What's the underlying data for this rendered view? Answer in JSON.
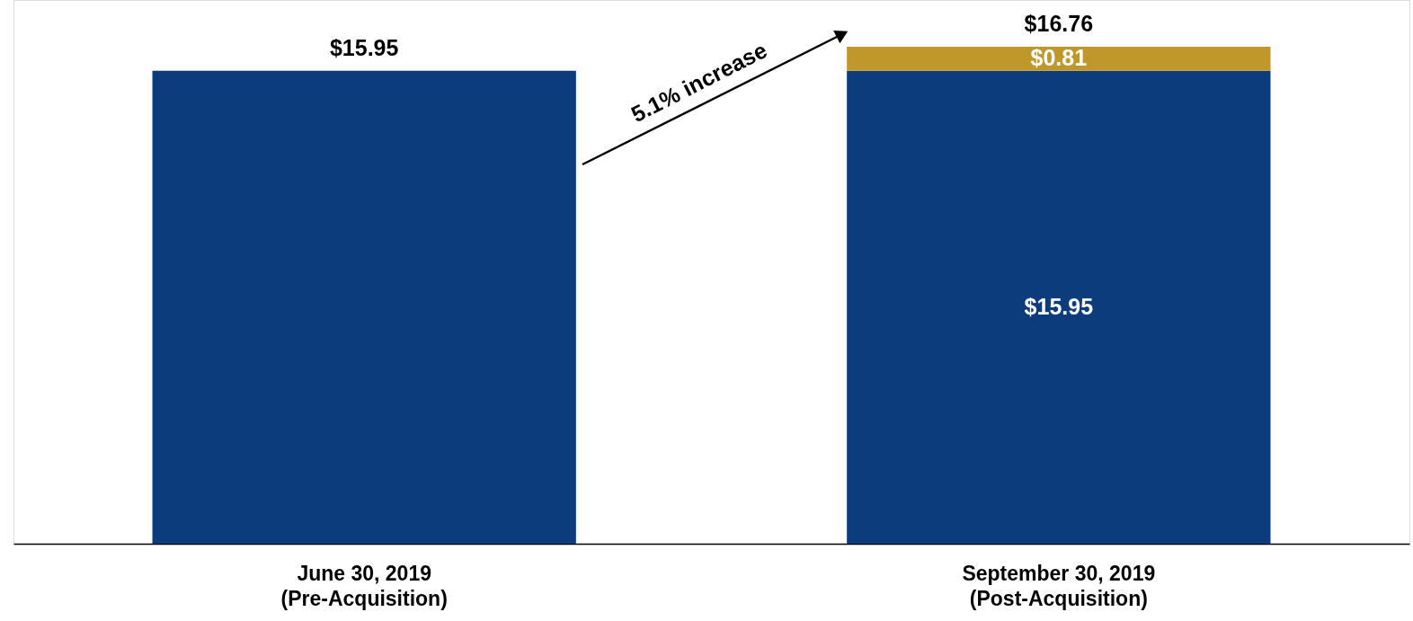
{
  "chart_data": {
    "type": "bar",
    "stacked": true,
    "categories": [
      "June 30, 2019\n(Pre-Acquisition)",
      "September 30, 2019\n(Post-Acquisition)"
    ],
    "series": [
      {
        "color": "#0c3c7c",
        "values": [
          15.95,
          15.95
        ],
        "value_labels": [
          null,
          "$15.95"
        ]
      },
      {
        "color": "#c0972b",
        "values": [
          null,
          0.81
        ],
        "value_labels": [
          null,
          "$0.81"
        ]
      }
    ],
    "totals": [
      "$15.95",
      "$16.76"
    ],
    "annotations": [
      "5.1% increase"
    ],
    "grid": false,
    "tick_labels": "x"
  }
}
